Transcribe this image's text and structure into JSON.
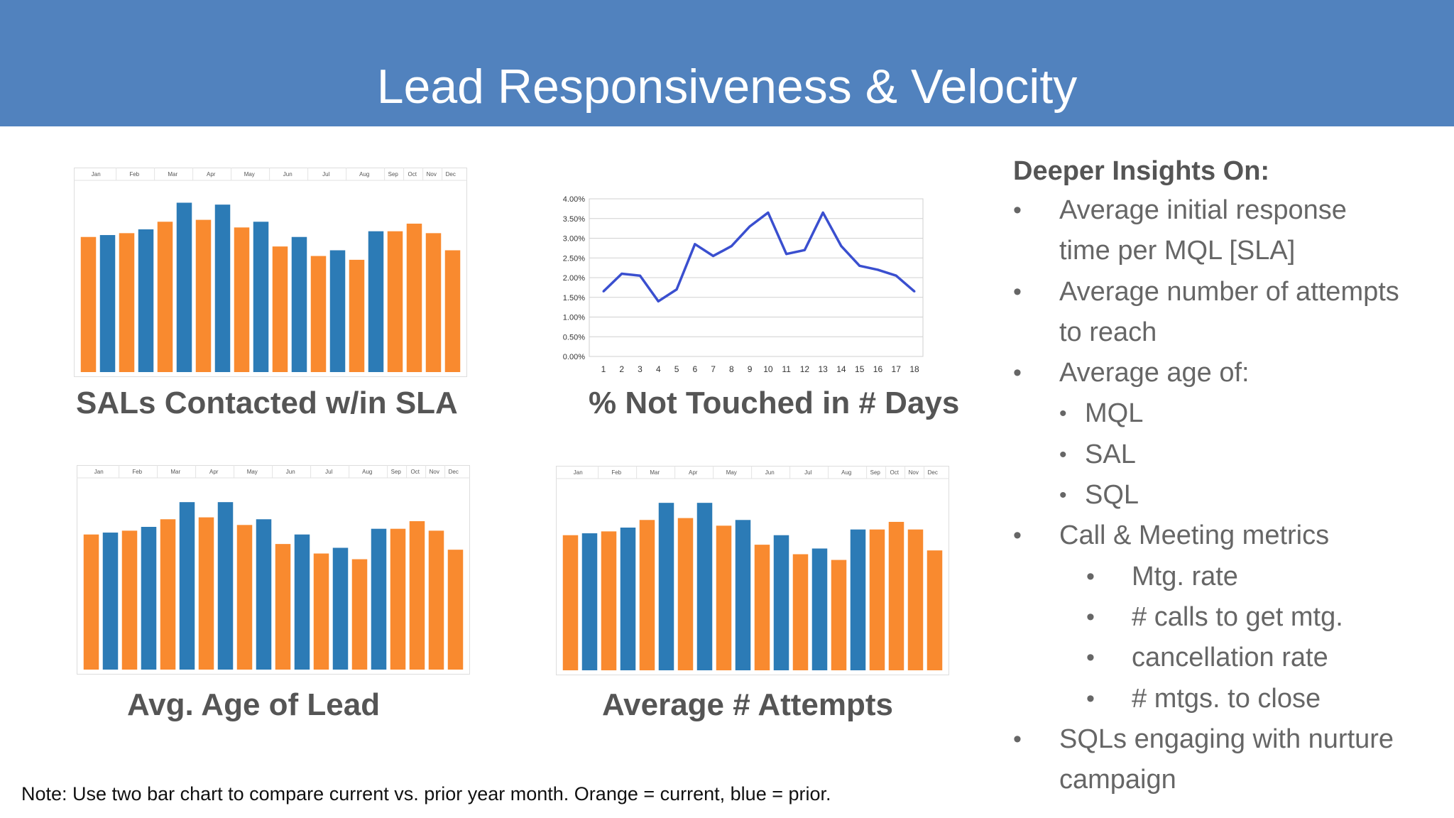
{
  "title": "Lead Responsiveness & Velocity",
  "colors": {
    "header": "#5182be",
    "current": "#f98a2f",
    "prior": "#2c7bb6",
    "line": "#3a4fcf"
  },
  "chart_data": [
    {
      "type": "bar",
      "title": "SALs Contacted w/in SLA",
      "categories": [
        "Jan",
        "Feb",
        "Mar",
        "Apr",
        "May",
        "Jun",
        "Jul",
        "Aug",
        "Sep",
        "Oct",
        "Nov",
        "Dec"
      ],
      "bars": [
        {
          "series": "current",
          "value": 71
        },
        {
          "series": "prior",
          "value": 72
        },
        {
          "series": "current",
          "value": 73
        },
        {
          "series": "prior",
          "value": 75
        },
        {
          "series": "current",
          "value": 79
        },
        {
          "series": "prior",
          "value": 89
        },
        {
          "series": "current",
          "value": 80
        },
        {
          "series": "prior",
          "value": 88
        },
        {
          "series": "current",
          "value": 76
        },
        {
          "series": "prior",
          "value": 79
        },
        {
          "series": "current",
          "value": 66
        },
        {
          "series": "prior",
          "value": 71
        },
        {
          "series": "current",
          "value": 61
        },
        {
          "series": "prior",
          "value": 64
        },
        {
          "series": "current",
          "value": 59
        },
        {
          "series": "prior",
          "value": 74
        },
        {
          "series": "current",
          "value": 74
        },
        {
          "series": "current",
          "value": 78
        },
        {
          "series": "current",
          "value": 73
        },
        {
          "series": "current",
          "value": 64
        }
      ]
    },
    {
      "type": "line",
      "title": "% Not Touched in # Days",
      "x": [
        1,
        2,
        3,
        4,
        5,
        6,
        7,
        8,
        9,
        10,
        11,
        12,
        13,
        14,
        15,
        16,
        17,
        18
      ],
      "y": [
        1.65,
        2.1,
        2.05,
        1.4,
        1.7,
        2.85,
        2.55,
        2.8,
        3.3,
        3.65,
        2.6,
        2.7,
        3.65,
        2.8,
        2.3,
        2.2,
        2.05,
        1.65
      ],
      "ylim": [
        0,
        4
      ],
      "yticks": [
        "0.00%",
        "0.50%",
        "1.00%",
        "1.50%",
        "2.00%",
        "2.50%",
        "3.00%",
        "3.50%",
        "4.00%"
      ],
      "grid": true
    },
    {
      "type": "bar",
      "title": "Avg. Age of Lead",
      "categories": [
        "Jan",
        "Feb",
        "Mar",
        "Apr",
        "May",
        "Jun",
        "Jul",
        "Aug",
        "Sep",
        "Oct",
        "Nov",
        "Dec"
      ],
      "bars": [
        {
          "series": "current",
          "value": 71
        },
        {
          "series": "prior",
          "value": 72
        },
        {
          "series": "current",
          "value": 73
        },
        {
          "series": "prior",
          "value": 75
        },
        {
          "series": "current",
          "value": 79
        },
        {
          "series": "prior",
          "value": 88
        },
        {
          "series": "current",
          "value": 80
        },
        {
          "series": "prior",
          "value": 88
        },
        {
          "series": "current",
          "value": 76
        },
        {
          "series": "prior",
          "value": 79
        },
        {
          "series": "current",
          "value": 66
        },
        {
          "series": "prior",
          "value": 71
        },
        {
          "series": "current",
          "value": 61
        },
        {
          "series": "prior",
          "value": 64
        },
        {
          "series": "current",
          "value": 58
        },
        {
          "series": "prior",
          "value": 74
        },
        {
          "series": "current",
          "value": 74
        },
        {
          "series": "current",
          "value": 78
        },
        {
          "series": "current",
          "value": 73
        },
        {
          "series": "current",
          "value": 63
        }
      ]
    },
    {
      "type": "bar",
      "title": "Average # Attempts",
      "categories": [
        "Jan",
        "Feb",
        "Mar",
        "Apr",
        "May",
        "Jun",
        "Jul",
        "Aug",
        "Sep",
        "Oct",
        "Nov",
        "Dec"
      ],
      "bars": [
        {
          "series": "current",
          "value": 71
        },
        {
          "series": "prior",
          "value": 72
        },
        {
          "series": "current",
          "value": 73
        },
        {
          "series": "prior",
          "value": 75
        },
        {
          "series": "current",
          "value": 79
        },
        {
          "series": "prior",
          "value": 88
        },
        {
          "series": "current",
          "value": 80
        },
        {
          "series": "prior",
          "value": 88
        },
        {
          "series": "current",
          "value": 76
        },
        {
          "series": "prior",
          "value": 79
        },
        {
          "series": "current",
          "value": 66
        },
        {
          "series": "prior",
          "value": 71
        },
        {
          "series": "current",
          "value": 61
        },
        {
          "series": "prior",
          "value": 64
        },
        {
          "series": "current",
          "value": 58
        },
        {
          "series": "prior",
          "value": 74
        },
        {
          "series": "current",
          "value": 74
        },
        {
          "series": "current",
          "value": 78
        },
        {
          "series": "current",
          "value": 74
        },
        {
          "series": "current",
          "value": 63
        }
      ]
    }
  ],
  "insights": {
    "heading": "Deeper Insights On:",
    "items": [
      {
        "level": 1,
        "bullet": "•",
        "text": "Average initial response"
      },
      {
        "level": 1,
        "bullet": "",
        "text": "time per MQL [SLA]"
      },
      {
        "level": 1,
        "bullet": "•",
        "text": "Average number of attempts"
      },
      {
        "level": 1,
        "bullet": "",
        "text": "to reach"
      },
      {
        "level": 1,
        "bullet": "•",
        "text": "Average age of:"
      },
      {
        "level": 2,
        "bullet": "•",
        "text": "MQL"
      },
      {
        "level": 2,
        "bullet": "•",
        "text": "SAL"
      },
      {
        "level": 2,
        "bullet": "•",
        "text": "SQL"
      },
      {
        "level": 1,
        "bullet": "•",
        "text": "Call & Meeting metrics"
      },
      {
        "level": 3,
        "bullet": "•",
        "text": "Mtg. rate"
      },
      {
        "level": 3,
        "bullet": "•",
        "text": "# calls to get mtg."
      },
      {
        "level": 3,
        "bullet": "•",
        "text": "cancellation rate"
      },
      {
        "level": 3,
        "bullet": "•",
        "text": "# mtgs. to close"
      },
      {
        "level": 1,
        "bullet": "•",
        "text": "SQLs engaging with nurture"
      },
      {
        "level": 1,
        "bullet": "",
        "text": "campaign"
      }
    ]
  },
  "note": "Note:  Use two bar chart to compare current vs. prior year month. Orange = current, blue = prior."
}
